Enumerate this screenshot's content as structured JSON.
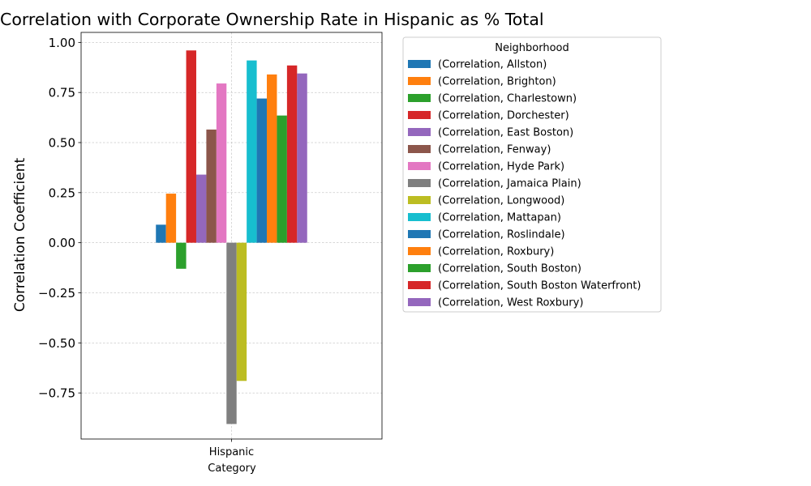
{
  "chart_data": {
    "type": "bar",
    "title": "Correlation with Corporate Ownership Rate in Hispanic as % Total",
    "xlabel": "Category",
    "ylabel": "Correlation Coefficient",
    "categories": [
      "Hispanic"
    ],
    "ylim": [
      -0.98,
      1.05
    ],
    "yticks": [
      -0.75,
      -0.5,
      -0.25,
      0.0,
      0.25,
      0.5,
      0.75,
      1.0
    ],
    "ytick_labels": [
      "−0.75",
      "−0.50",
      "−0.25",
      "0.00",
      "0.25",
      "0.50",
      "0.75",
      "1.00"
    ],
    "grid": true,
    "legend": {
      "title": "Neighborhood",
      "placement": "outside-right-top"
    },
    "series": [
      {
        "name": "(Correlation, Allston)",
        "values": [
          0.09
        ],
        "color": "#1f77b4"
      },
      {
        "name": "(Correlation, Brighton)",
        "values": [
          0.245
        ],
        "color": "#ff7f0e"
      },
      {
        "name": "(Correlation, Charlestown)",
        "values": [
          -0.13
        ],
        "color": "#2ca02c"
      },
      {
        "name": "(Correlation, Dorchester)",
        "values": [
          0.96
        ],
        "color": "#d62728"
      },
      {
        "name": "(Correlation, East Boston)",
        "values": [
          0.34
        ],
        "color": "#9467bd"
      },
      {
        "name": "(Correlation, Fenway)",
        "values": [
          0.565
        ],
        "color": "#8c564b"
      },
      {
        "name": "(Correlation, Hyde Park)",
        "values": [
          0.795
        ],
        "color": "#e377c2"
      },
      {
        "name": "(Correlation, Jamaica Plain)",
        "values": [
          -0.905
        ],
        "color": "#7f7f7f"
      },
      {
        "name": "(Correlation, Longwood)",
        "values": [
          -0.69
        ],
        "color": "#bcbd22"
      },
      {
        "name": "(Correlation, Mattapan)",
        "values": [
          0.91
        ],
        "color": "#17becf"
      },
      {
        "name": "(Correlation, Roslindale)",
        "values": [
          0.72
        ],
        "color": "#1f77b4"
      },
      {
        "name": "(Correlation, Roxbury)",
        "values": [
          0.84
        ],
        "color": "#ff7f0e"
      },
      {
        "name": "(Correlation, South Boston)",
        "values": [
          0.635
        ],
        "color": "#2ca02c"
      },
      {
        "name": "(Correlation, South Boston Waterfront)",
        "values": [
          0.885
        ],
        "color": "#d62728"
      },
      {
        "name": "(Correlation, West Roxbury)",
        "values": [
          0.845
        ],
        "color": "#9467bd"
      }
    ]
  }
}
